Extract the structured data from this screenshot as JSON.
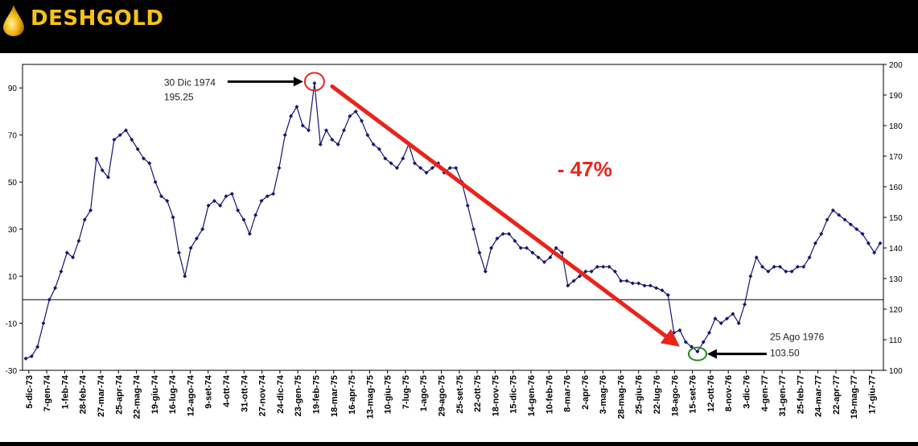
{
  "brand": {
    "name": "DESHGOLD",
    "logo_icon": "gold-drop-icon",
    "text_color": "#f6c21a"
  },
  "chart_data": {
    "type": "line",
    "series_color": "#14146e",
    "yleft": {
      "min": -30,
      "max": 100,
      "ticks": [
        -30,
        -10,
        10,
        30,
        50,
        70,
        90
      ]
    },
    "yright": {
      "min": 100,
      "max": 200,
      "ticks": [
        100,
        110,
        120,
        130,
        140,
        150,
        160,
        170,
        180,
        190,
        200
      ]
    },
    "x_ticks": [
      "5-dic-73",
      "7-gen-74",
      "1-feb-74",
      "28-feb-74",
      "27-mar-74",
      "25-apr-74",
      "22-mag-74",
      "19-giu-74",
      "16-lug-74",
      "12-ago-74",
      "9-set-74",
      "4-ott-74",
      "31-ott-74",
      "27-nov-74",
      "24-dic-74",
      "23-gen-75",
      "19-feb-75",
      "18-mar-75",
      "16-apr-75",
      "13-mag-75",
      "10-giu-75",
      "7-lug-75",
      "1-ago-75",
      "29-ago-75",
      "25-set-75",
      "22-ott-75",
      "18-nov-75",
      "15-dic-75",
      "14-gen-76",
      "10-feb-76",
      "8-mar-76",
      "2-apr-76",
      "3-mag-76",
      "28-mag-76",
      "25-giu-76",
      "22-lug-76",
      "18-ago-76",
      "15-set-76",
      "12-ott-76",
      "8-nov-76",
      "3-dic-76",
      "4-gen-77",
      "31-gen-77",
      "25-feb-77",
      "24-mar-77",
      "22-apr-77",
      "19-mag-77",
      "17-giu-77"
    ],
    "values": [
      -25,
      -24,
      -20,
      -10,
      0,
      5,
      12,
      20,
      18,
      25,
      34,
      38,
      60,
      55,
      52,
      68,
      70,
      72,
      68,
      64,
      60,
      58,
      50,
      44,
      42,
      35,
      20,
      10,
      22,
      26,
      30,
      40,
      42,
      40,
      44,
      45,
      38,
      34,
      28,
      36,
      42,
      44,
      45,
      56,
      70,
      78,
      82,
      74,
      72,
      92,
      66,
      72,
      68,
      66,
      72,
      78,
      80,
      76,
      70,
      66,
      64,
      60,
      58,
      56,
      60,
      66,
      58,
      56,
      54,
      56,
      58,
      54,
      56,
      56,
      50,
      40,
      30,
      20,
      12,
      22,
      26,
      28,
      28,
      25,
      22,
      22,
      20,
      18,
      16,
      18,
      22,
      20,
      6,
      8,
      10,
      12,
      12,
      14,
      14,
      14,
      12,
      8,
      8,
      7,
      7,
      6,
      6,
      5,
      4,
      2,
      -14,
      -13,
      -18,
      -20,
      -22,
      -18,
      -14,
      -8,
      -10,
      -8,
      -6,
      -10,
      -2,
      10,
      18,
      14,
      12,
      14,
      14,
      12,
      12,
      14,
      14,
      18,
      24,
      28,
      34,
      38,
      36,
      34,
      32,
      30,
      28,
      24,
      20,
      24
    ],
    "start_annotation": {
      "date": "30 Dic 1974",
      "value": "195.25"
    },
    "end_annotation": {
      "date": "25 Ago 1976",
      "value": "103.50"
    },
    "change_label": "- 47%",
    "arrow_color": "#e8241b",
    "peak_circle_color": "#e8241b",
    "trough_circle_color": "#1f8a1f"
  }
}
